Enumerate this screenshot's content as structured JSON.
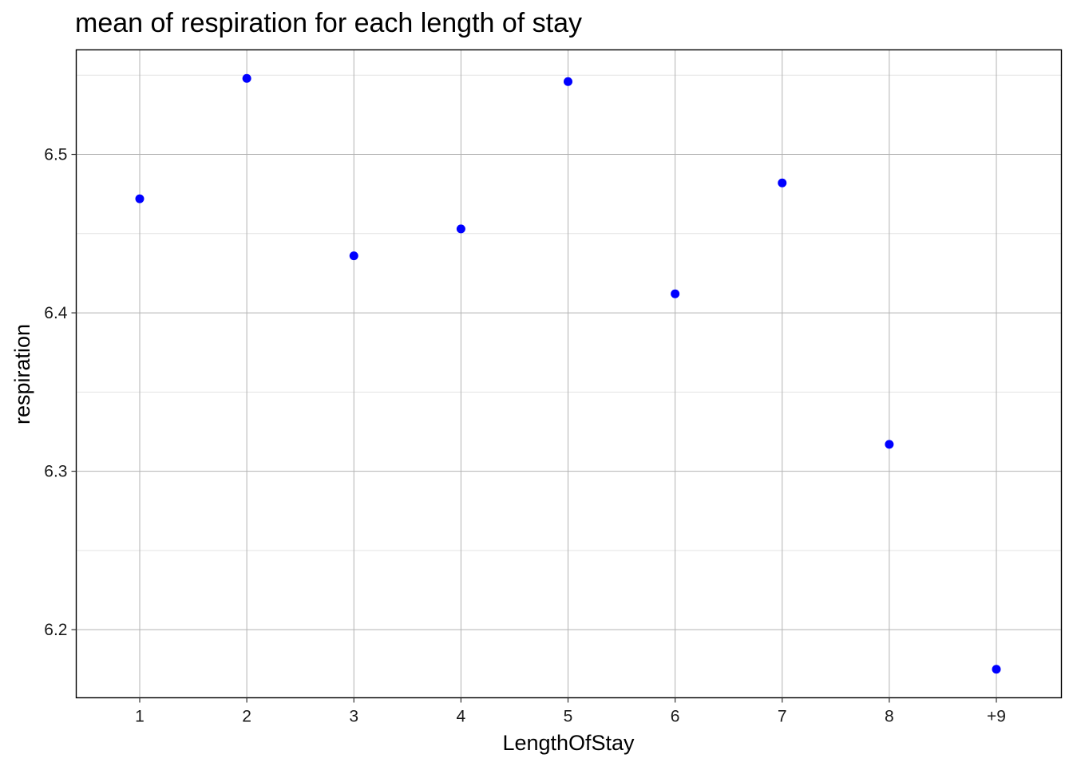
{
  "chart_data": {
    "type": "scatter",
    "title": "mean of respiration for each length of stay",
    "xlabel": "LengthOfStay",
    "ylabel": "respiration",
    "categories": [
      "1",
      "2",
      "3",
      "4",
      "5",
      "6",
      "7",
      "8",
      "+9"
    ],
    "values": [
      6.472,
      6.548,
      6.436,
      6.453,
      6.546,
      6.412,
      6.482,
      6.317,
      6.175
    ],
    "ylim": [
      6.157,
      6.566
    ],
    "yticks": [
      6.2,
      6.3,
      6.4,
      6.5
    ],
    "ytick_labels": [
      "6.2",
      "6.3",
      "6.4",
      "6.5"
    ],
    "y_minor_ticks": [
      6.25,
      6.35,
      6.45,
      6.55
    ],
    "grid": true,
    "point_color": "#0000ff"
  }
}
